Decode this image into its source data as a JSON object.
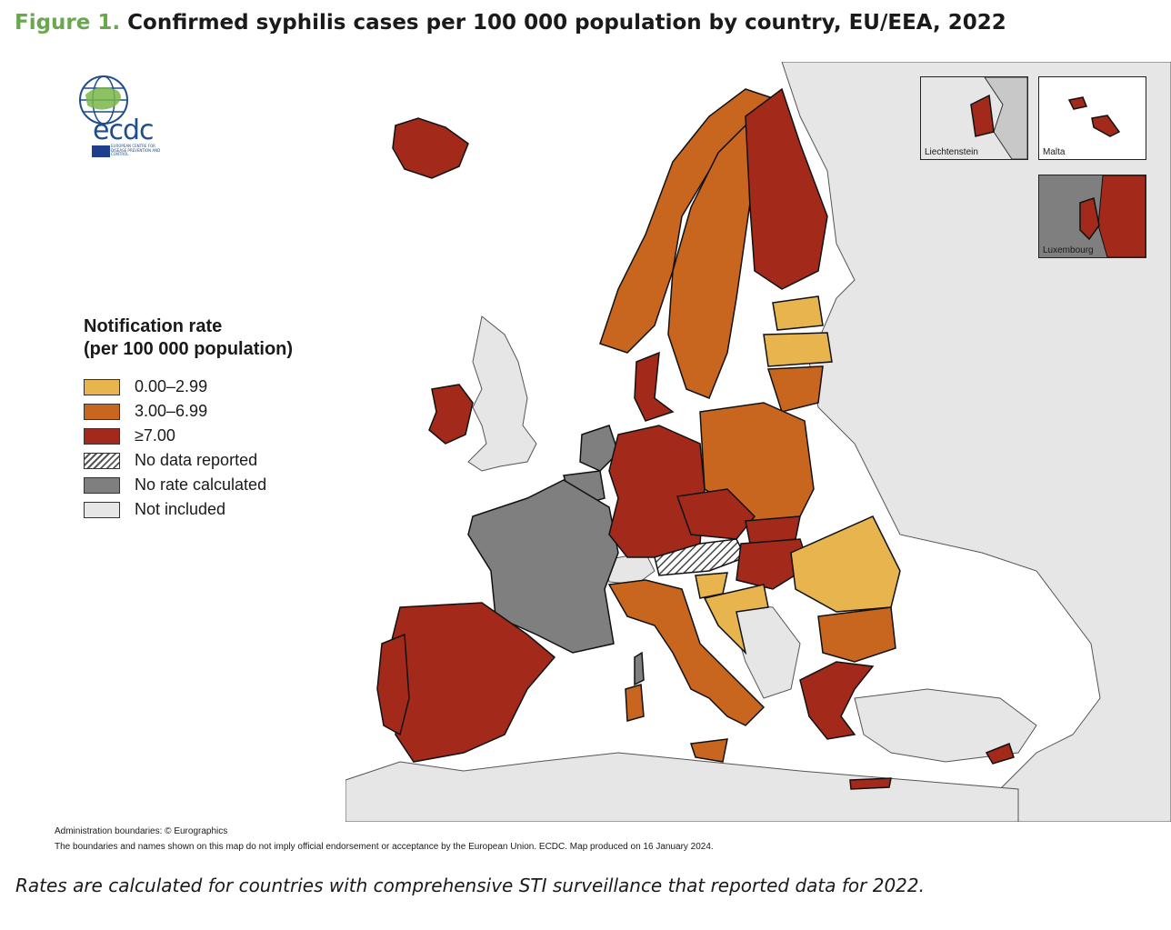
{
  "figure": {
    "number_label": "Figure 1.",
    "title": "Confirmed syphilis cases per 100 000 population by country, EU/EEA, 2022"
  },
  "logo": {
    "text": "ecdc",
    "subtitle": "EUROPEAN CENTRE FOR DISEASE PREVENTION AND CONTROL"
  },
  "legend": {
    "title_line1": "Notification rate",
    "title_line2": "(per 100 000 population)",
    "items": [
      {
        "label": "0.00–2.99",
        "color": "#e8b44d"
      },
      {
        "label": "3.00–6.99",
        "color": "#c8651f"
      },
      {
        "label": "≥7.00",
        "color": "#a3291a"
      },
      {
        "label": "No data reported",
        "color": "hatched"
      },
      {
        "label": "No rate calculated",
        "color": "#7f7f7f"
      },
      {
        "label": "Not included",
        "color": "#e6e6e6"
      }
    ]
  },
  "insets": {
    "liechtenstein": "Liechtenstein",
    "malta": "Malta",
    "luxembourg": "Luxembourg"
  },
  "colors": {
    "low": "#e8b44d",
    "mid": "#c8651f",
    "high": "#a3291a",
    "norate": "#7f7f7f",
    "notincluded": "#e6e6e6",
    "figure_green": "#6aa84f"
  },
  "footnotes": {
    "admin": "Administration boundaries: © Eurographics",
    "disclaimer": "The boundaries and names shown on this map do not imply official endorsement or acceptance by the European Union. ECDC. Map produced on 16 January 2024."
  },
  "caption": "Rates are calculated for countries with comprehensive STI surveillance that reported data for 2022."
}
